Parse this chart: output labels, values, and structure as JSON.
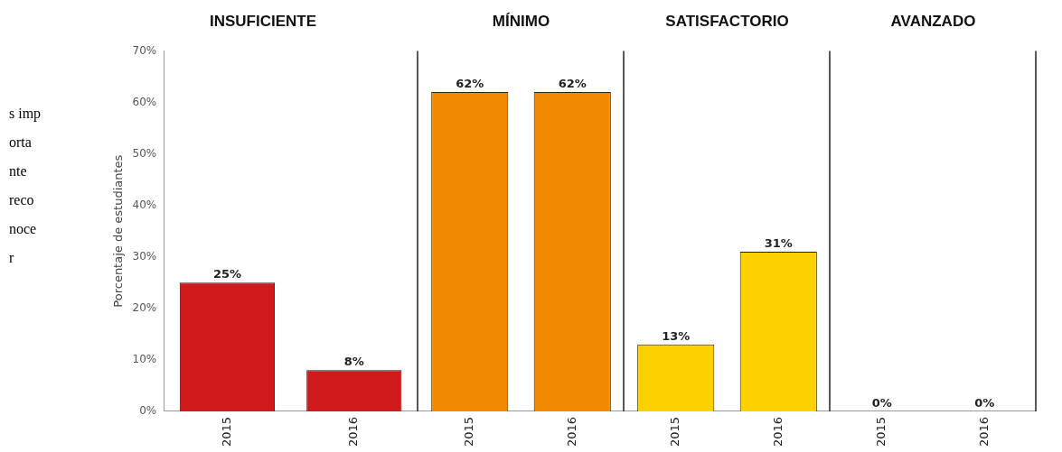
{
  "chart_data": [
    {
      "type": "bar",
      "title": "INSUFICIENTE",
      "ylabel": "Porcentaje de estudiantes",
      "categories": [
        "2015",
        "2016"
      ],
      "values": [
        25,
        8
      ],
      "value_labels": [
        "25%",
        "8%"
      ],
      "color": "#d0191b",
      "ylim": [
        0,
        70
      ],
      "yticks": [
        {
          "value": 0,
          "label": "0%"
        },
        {
          "value": 10,
          "label": "10%"
        },
        {
          "value": 20,
          "label": "20%"
        },
        {
          "value": 30,
          "label": "30%"
        },
        {
          "value": 40,
          "label": "40%"
        },
        {
          "value": 50,
          "label": "50%"
        },
        {
          "value": 60,
          "label": "60%"
        },
        {
          "value": 70,
          "label": "70%"
        }
      ],
      "annotations": [
        "s imp orta nte reco noce r"
      ]
    },
    {
      "type": "bar",
      "title": "MÍNIMO",
      "categories": [
        "2015",
        "2016"
      ],
      "values": [
        62,
        62
      ],
      "value_labels": [
        "62%",
        "62%"
      ],
      "color": "#f08a00",
      "ylim": [
        0,
        70
      ],
      "tick_labels": "x"
    },
    {
      "type": "bar",
      "title": "SATISFACTORIO",
      "categories": [
        "2015",
        "2016"
      ],
      "values": [
        13,
        31
      ],
      "value_labels": [
        "13%",
        "31%"
      ],
      "color": "#fcd100",
      "ylim": [
        0,
        70
      ],
      "tick_labels": "x"
    },
    {
      "type": "bar",
      "title": "AVANZADO",
      "categories": [
        "2015",
        "2016"
      ],
      "values": [
        0,
        0
      ],
      "value_labels": [
        "0%",
        "0%"
      ],
      "color": "#f08a00",
      "ylim": [
        0,
        70
      ],
      "tick_labels": "x"
    }
  ]
}
